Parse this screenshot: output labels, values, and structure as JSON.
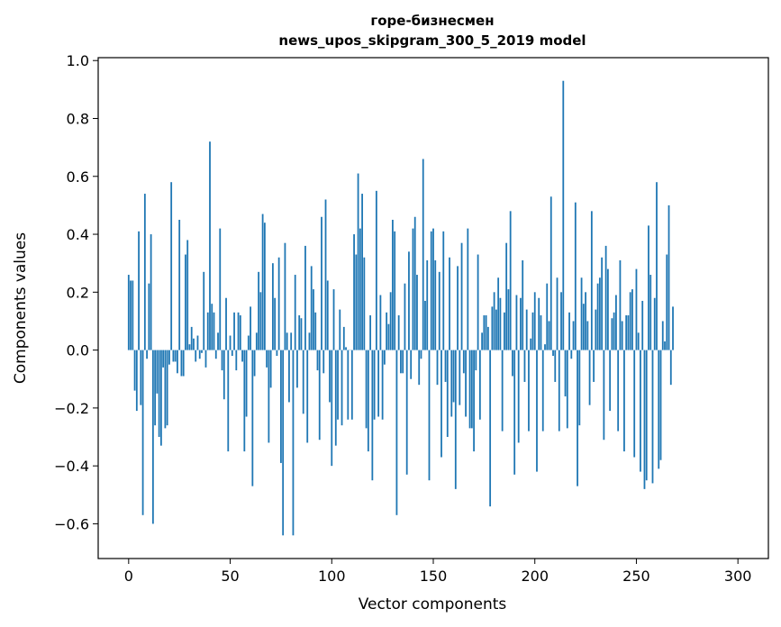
{
  "chart_data": {
    "type": "bar",
    "title_line1": "горе-бизнесмен",
    "title_line2": "news_upos_skipgram_300_5_2019 model",
    "xlabel": "Vector components",
    "ylabel": "Components values",
    "xlim": [
      -15,
      315
    ],
    "ylim": [
      -0.72,
      1.01
    ],
    "xticks": [
      0,
      50,
      100,
      150,
      200,
      250,
      300
    ],
    "yticks": [
      -0.6,
      -0.4,
      -0.2,
      0.0,
      0.2,
      0.4,
      0.6,
      0.8,
      1.0
    ],
    "ytick_labels": [
      "−0.6",
      "−0.4",
      "−0.2",
      "0.0",
      "0.2",
      "0.4",
      "0.6",
      "0.8",
      "1.0"
    ],
    "bar_color": "#1f77b4",
    "grid": false,
    "values": [
      0.26,
      0.24,
      0.24,
      -0.14,
      -0.21,
      0.41,
      -0.19,
      -0.57,
      0.54,
      -0.03,
      0.23,
      0.4,
      -0.6,
      -0.26,
      -0.15,
      -0.3,
      -0.33,
      -0.06,
      -0.27,
      -0.26,
      -0.05,
      0.58,
      -0.04,
      -0.04,
      -0.08,
      0.45,
      -0.09,
      -0.09,
      0.33,
      0.38,
      0.02,
      0.08,
      0.04,
      -0.04,
      0.05,
      -0.03,
      -0.01,
      0.27,
      -0.06,
      0.13,
      0.72,
      0.16,
      0.13,
      -0.03,
      0.06,
      0.42,
      -0.07,
      -0.17,
      0.18,
      -0.35,
      0.05,
      -0.02,
      0.13,
      -0.07,
      0.13,
      0.12,
      -0.04,
      -0.35,
      -0.23,
      0.05,
      0.15,
      -0.47,
      -0.09,
      0.06,
      0.27,
      0.2,
      0.47,
      0.44,
      -0.06,
      -0.32,
      -0.13,
      0.3,
      0.18,
      -0.02,
      0.32,
      -0.39,
      -0.64,
      0.37,
      0.06,
      -0.18,
      0.06,
      -0.64,
      0.26,
      -0.13,
      0.12,
      0.11,
      -0.22,
      0.36,
      -0.32,
      0.06,
      0.29,
      0.21,
      0.13,
      -0.07,
      -0.31,
      0.46,
      -0.08,
      0.52,
      0.24,
      -0.18,
      -0.4,
      0.21,
      -0.33,
      -0.24,
      0.14,
      -0.26,
      0.08,
      0.01,
      -0.24,
      0.0,
      -0.24,
      0.4,
      0.33,
      0.61,
      0.42,
      0.54,
      0.32,
      -0.27,
      -0.35,
      0.12,
      -0.45,
      -0.24,
      0.55,
      -0.23,
      0.19,
      -0.24,
      -0.05,
      0.13,
      0.09,
      0.2,
      0.45,
      0.41,
      -0.57,
      0.12,
      -0.08,
      -0.08,
      0.23,
      -0.43,
      0.34,
      -0.1,
      0.42,
      0.46,
      0.26,
      -0.12,
      -0.03,
      0.66,
      0.17,
      0.31,
      -0.45,
      0.41,
      0.42,
      0.31,
      -0.12,
      0.27,
      -0.37,
      0.41,
      -0.11,
      -0.3,
      0.32,
      -0.23,
      -0.18,
      -0.48,
      0.29,
      -0.19,
      0.37,
      -0.08,
      -0.23,
      0.42,
      -0.27,
      -0.27,
      -0.35,
      -0.07,
      0.33,
      -0.24,
      0.06,
      0.12,
      0.12,
      0.08,
      -0.54,
      0.15,
      0.2,
      0.14,
      0.25,
      0.18,
      -0.28,
      0.13,
      0.37,
      0.21,
      0.48,
      -0.09,
      -0.43,
      0.19,
      -0.32,
      0.18,
      0.31,
      -0.11,
      0.14,
      -0.28,
      0.04,
      0.13,
      0.2,
      -0.42,
      0.18,
      0.12,
      -0.28,
      0.02,
      0.23,
      0.1,
      0.53,
      -0.02,
      -0.11,
      0.25,
      -0.28,
      0.2,
      0.93,
      -0.16,
      -0.27,
      0.13,
      -0.03,
      0.1,
      0.51,
      -0.47,
      -0.26,
      0.25,
      0.16,
      0.2,
      0.1,
      -0.19,
      0.48,
      -0.11,
      0.14,
      0.23,
      0.25,
      0.32,
      -0.31,
      0.36,
      0.28,
      -0.21,
      0.11,
      0.13,
      0.19,
      -0.28,
      0.31,
      0.1,
      -0.35,
      0.12,
      0.12,
      0.2,
      0.21,
      -0.37,
      0.28,
      0.06,
      -0.42,
      0.17,
      -0.48,
      -0.45,
      0.43,
      0.26,
      -0.46,
      0.18,
      0.58,
      -0.41,
      -0.38,
      0.1,
      0.03,
      0.33,
      0.5,
      -0.12,
      0.15
    ]
  }
}
